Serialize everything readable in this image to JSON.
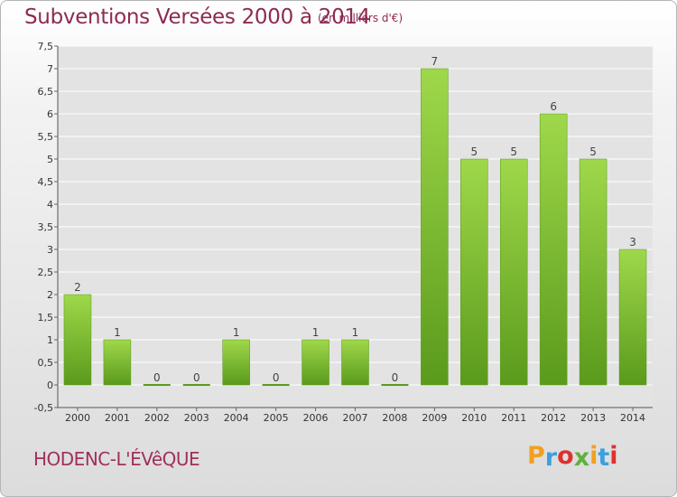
{
  "header": {
    "title": "Subventions Versées 2000 à 2014",
    "unit_note": "(en milliers d'€)"
  },
  "footer": {
    "commune": "HODENC-L'ÉVêQUE",
    "logo_text": "Proxiti",
    "logo_colors": [
      "#f0a020",
      "#3aa0e0",
      "#e03030",
      "#60b040",
      "#f0a020",
      "#3aa0e0",
      "#e03030"
    ]
  },
  "chart_data": {
    "type": "bar",
    "title": "Subventions Versées 2000 à 2014",
    "subtitle": "(en milliers d'€)",
    "categories": [
      "2000",
      "2001",
      "2002",
      "2003",
      "2004",
      "2005",
      "2006",
      "2007",
      "2008",
      "2009",
      "2010",
      "2011",
      "2012",
      "2013",
      "2014"
    ],
    "values": [
      2,
      1,
      0,
      0,
      1,
      0,
      1,
      1,
      0,
      7,
      5,
      5,
      6,
      5,
      3
    ],
    "value_labels": [
      "2",
      "1",
      "0",
      "0",
      "1",
      "0",
      "1",
      "1",
      "0",
      "7",
      "5",
      "5",
      "6",
      "5",
      "3"
    ],
    "ylim": [
      -0.5,
      7.5
    ],
    "y_ticks": [
      -0.5,
      0,
      0.5,
      1,
      1.5,
      2,
      2.5,
      3,
      3.5,
      4,
      4.5,
      5,
      5.5,
      6,
      6.5,
      7,
      7.5
    ],
    "y_tick_labels": [
      "-0,5",
      "0",
      "0,5",
      "1",
      "1,5",
      "2",
      "2,5",
      "3",
      "3,5",
      "4",
      "4,5",
      "5",
      "5,5",
      "6",
      "6,5",
      "7",
      "7,5"
    ],
    "grid": true,
    "bar_color": "#7dc032",
    "bar_color_light": "#9fd84a",
    "bar_color_dark": "#5a9a1c",
    "xlabel": "",
    "ylabel": ""
  }
}
